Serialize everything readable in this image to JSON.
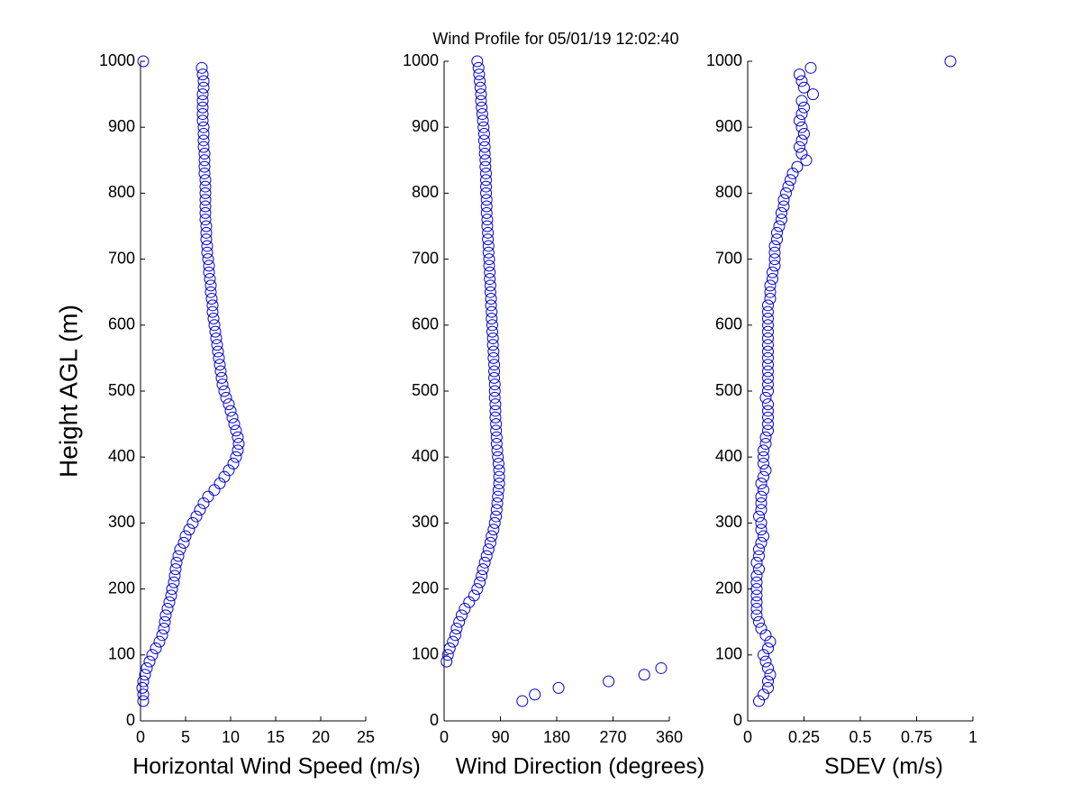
{
  "title": "Wind Profile for  05/01/19 12:02:40",
  "chart_data": [
    {
      "type": "scatter",
      "xlabel": "Horizontal Wind Speed (m/s)",
      "ylabel": "Height AGL (m)",
      "color": "#0000cc",
      "xlim": [
        0,
        25
      ],
      "xticks": [
        0,
        5,
        10,
        15,
        20,
        25
      ],
      "ylim": [
        0,
        1000
      ],
      "yticks": [
        0,
        100,
        200,
        300,
        400,
        500,
        600,
        700,
        800,
        900,
        1000
      ],
      "x": [
        0.3,
        0.3,
        0.2,
        0.3,
        0.5,
        0.7,
        1.0,
        1.3,
        1.7,
        2.1,
        2.4,
        2.6,
        2.7,
        2.8,
        3.0,
        3.2,
        3.4,
        3.5,
        3.7,
        3.8,
        3.9,
        4.0,
        4.2,
        4.4,
        4.8,
        5.0,
        5.4,
        5.8,
        6.2,
        6.6,
        7.0,
        7.5,
        8.2,
        8.8,
        9.3,
        9.8,
        10.3,
        10.6,
        10.8,
        10.9,
        10.8,
        10.6,
        10.4,
        10.2,
        10.0,
        9.8,
        9.5,
        9.3,
        9.1,
        9.0,
        8.9,
        8.8,
        8.7,
        8.6,
        8.5,
        8.4,
        8.3,
        8.2,
        8.1,
        8.0,
        8.0,
        7.9,
        7.8,
        7.8,
        7.7,
        7.6,
        7.6,
        7.5,
        7.4,
        7.4,
        7.3,
        7.3,
        7.3,
        7.2,
        7.2,
        7.2,
        7.2,
        7.2,
        7.2,
        7.2,
        7.1,
        7.1,
        7.1,
        7.1,
        7.0,
        7.0,
        7.0,
        7.0,
        6.9,
        6.9,
        6.9,
        6.9,
        6.9,
        7.0,
        7.0,
        6.9,
        6.8,
        0.3
      ],
      "y": [
        30,
        40,
        50,
        60,
        70,
        80,
        90,
        100,
        110,
        120,
        130,
        140,
        150,
        160,
        170,
        180,
        190,
        200,
        210,
        220,
        230,
        240,
        250,
        260,
        270,
        280,
        290,
        300,
        310,
        320,
        330,
        340,
        350,
        360,
        370,
        380,
        390,
        400,
        410,
        420,
        430,
        440,
        450,
        460,
        470,
        480,
        490,
        500,
        510,
        520,
        530,
        540,
        550,
        560,
        570,
        580,
        590,
        600,
        610,
        620,
        630,
        640,
        650,
        660,
        670,
        680,
        690,
        700,
        710,
        720,
        730,
        740,
        750,
        760,
        770,
        780,
        790,
        800,
        810,
        820,
        830,
        840,
        850,
        860,
        870,
        880,
        890,
        900,
        910,
        920,
        930,
        940,
        950,
        960,
        970,
        980,
        990,
        1000
      ]
    },
    {
      "type": "scatter",
      "xlabel": "Wind Direction (degrees)",
      "color": "#0000cc",
      "xlim": [
        0,
        360
      ],
      "xticks": [
        0,
        90,
        180,
        270,
        360
      ],
      "ylim": [
        0,
        1000
      ],
      "yticks": [
        0,
        100,
        200,
        300,
        400,
        500,
        600,
        700,
        800,
        900,
        1000
      ],
      "x": [
        125,
        145,
        183,
        263,
        320,
        347,
        4,
        6,
        9,
        14,
        18,
        20,
        24,
        28,
        33,
        40,
        48,
        53,
        57,
        60,
        62,
        65,
        68,
        71,
        74,
        76,
        79,
        81,
        83,
        84,
        85,
        86,
        87,
        88,
        88,
        88,
        87,
        86,
        85,
        84,
        84,
        83,
        83,
        82,
        82,
        82,
        81,
        81,
        81,
        80,
        80,
        80,
        79,
        79,
        78,
        78,
        77,
        77,
        76,
        76,
        75,
        75,
        74,
        74,
        73,
        73,
        72,
        72,
        71,
        71,
        70,
        70,
        69,
        69,
        68,
        68,
        68,
        67,
        67,
        67,
        67,
        66,
        66,
        65,
        65,
        64,
        64,
        63,
        62,
        61,
        60,
        59,
        59,
        58,
        57,
        56,
        55,
        53
      ],
      "y": [
        30,
        40,
        50,
        60,
        70,
        80,
        90,
        100,
        110,
        120,
        130,
        140,
        150,
        160,
        170,
        180,
        190,
        200,
        210,
        220,
        230,
        240,
        250,
        260,
        270,
        280,
        290,
        300,
        310,
        320,
        330,
        340,
        350,
        360,
        370,
        380,
        390,
        400,
        410,
        420,
        430,
        440,
        450,
        460,
        470,
        480,
        490,
        500,
        510,
        520,
        530,
        540,
        550,
        560,
        570,
        580,
        590,
        600,
        610,
        620,
        630,
        640,
        650,
        660,
        670,
        680,
        690,
        700,
        710,
        720,
        730,
        740,
        750,
        760,
        770,
        780,
        790,
        800,
        810,
        820,
        830,
        840,
        850,
        860,
        870,
        880,
        890,
        900,
        910,
        920,
        930,
        940,
        950,
        960,
        970,
        980,
        990,
        1000
      ]
    },
    {
      "type": "scatter",
      "xlabel": "SDEV  (m/s)",
      "color": "#0000cc",
      "xlim": [
        0,
        1
      ],
      "xticks": [
        0,
        0.25,
        0.5,
        0.75,
        1
      ],
      "ylim": [
        0,
        1000
      ],
      "yticks": [
        0,
        100,
        200,
        300,
        400,
        500,
        600,
        700,
        800,
        900,
        1000
      ],
      "x": [
        0.05,
        0.07,
        0.09,
        0.09,
        0.1,
        0.09,
        0.08,
        0.07,
        0.09,
        0.1,
        0.08,
        0.06,
        0.05,
        0.04,
        0.04,
        0.04,
        0.04,
        0.04,
        0.04,
        0.04,
        0.05,
        0.04,
        0.05,
        0.05,
        0.06,
        0.07,
        0.06,
        0.06,
        0.05,
        0.06,
        0.06,
        0.06,
        0.07,
        0.06,
        0.07,
        0.08,
        0.07,
        0.07,
        0.07,
        0.08,
        0.08,
        0.09,
        0.09,
        0.09,
        0.09,
        0.09,
        0.08,
        0.09,
        0.09,
        0.09,
        0.09,
        0.09,
        0.09,
        0.09,
        0.09,
        0.09,
        0.09,
        0.09,
        0.09,
        0.09,
        0.09,
        0.1,
        0.1,
        0.1,
        0.11,
        0.11,
        0.12,
        0.12,
        0.12,
        0.12,
        0.13,
        0.13,
        0.14,
        0.15,
        0.15,
        0.16,
        0.16,
        0.17,
        0.18,
        0.19,
        0.2,
        0.22,
        0.26,
        0.24,
        0.23,
        0.24,
        0.25,
        0.24,
        0.23,
        0.24,
        0.25,
        0.24,
        0.29,
        0.25,
        0.24,
        0.23,
        0.28,
        0.9
      ],
      "y": [
        30,
        40,
        50,
        60,
        70,
        80,
        90,
        100,
        110,
        120,
        130,
        140,
        150,
        160,
        170,
        180,
        190,
        200,
        210,
        220,
        230,
        240,
        250,
        260,
        270,
        280,
        290,
        300,
        310,
        320,
        330,
        340,
        350,
        360,
        370,
        380,
        390,
        400,
        410,
        420,
        430,
        440,
        450,
        460,
        470,
        480,
        490,
        500,
        510,
        520,
        530,
        540,
        550,
        560,
        570,
        580,
        590,
        600,
        610,
        620,
        630,
        640,
        650,
        660,
        670,
        680,
        690,
        700,
        710,
        720,
        730,
        740,
        750,
        760,
        770,
        780,
        790,
        800,
        810,
        820,
        830,
        840,
        850,
        860,
        870,
        880,
        890,
        900,
        910,
        920,
        930,
        940,
        950,
        960,
        970,
        980,
        990,
        1000
      ]
    }
  ]
}
